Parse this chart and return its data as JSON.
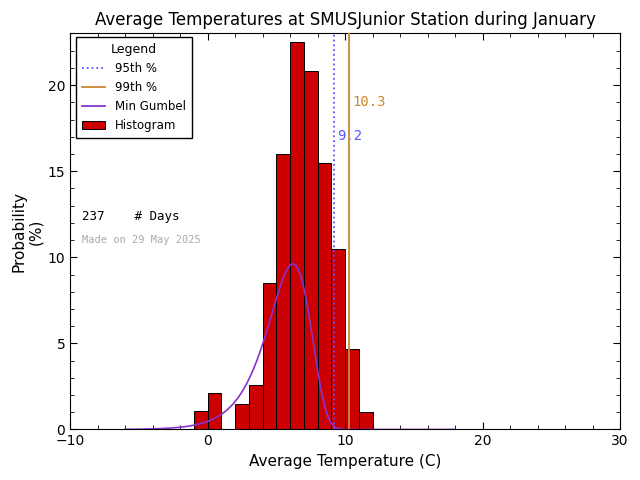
{
  "title": "Average Temperatures at SMUSJunior Station during January",
  "xlabel": "Average Temperature (C)",
  "ylabel": "Probability\n(%)",
  "xlim": [
    -10,
    30
  ],
  "ylim": [
    0,
    23
  ],
  "percentile_95": 9.2,
  "percentile_99": 10.3,
  "n_days": 237,
  "made_on": "Made on 29 May 2025",
  "bar_color": "#cc0000",
  "bar_edge_color": "#000000",
  "gumbel_color": "#8833cc",
  "p95_color": "#5555ff",
  "p99_color": "#cc8833",
  "p95_label": "9.2",
  "p99_label": "10.3",
  "background_color": "#ffffff",
  "title_fontsize": 12,
  "label_fontsize": 11,
  "tick_fontsize": 10,
  "bin_left": [
    -1,
    0,
    2,
    3,
    4,
    5,
    6,
    7,
    8,
    9,
    10,
    11
  ],
  "bar_heights": [
    1.1,
    2.1,
    1.5,
    2.6,
    8.5,
    16.0,
    22.5,
    20.8,
    15.5,
    10.5,
    4.7,
    1.0
  ],
  "bin_width": 1.0,
  "gumbel_mu": 6.2,
  "gumbel_beta": 1.55,
  "gumbel_scale": 40.5
}
